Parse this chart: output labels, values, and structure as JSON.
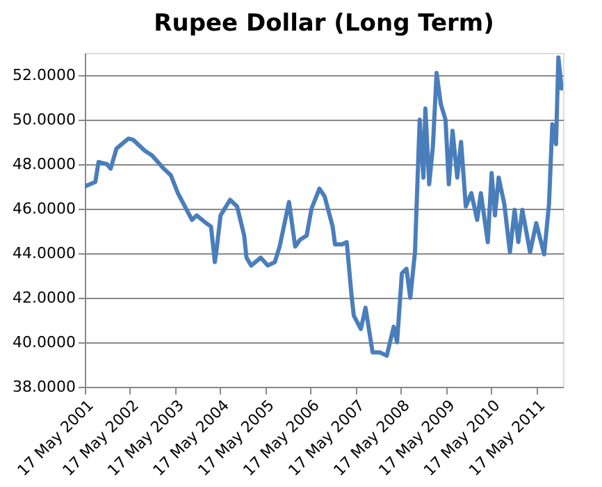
{
  "chart_data": {
    "type": "line",
    "title": "Rupee Dollar (Long Term)",
    "x": [
      "2001-05-17",
      "2001-08-10",
      "2001-09-05",
      "2001-11-12",
      "2001-12-12",
      "2002-01-28",
      "2002-05-04",
      "2002-06-11",
      "2002-09-15",
      "2002-11-11",
      "2003-02-15",
      "2003-04-13",
      "2003-06-09",
      "2003-08-05",
      "2003-10-01",
      "2003-11-08",
      "2004-01-24",
      "2004-03-03",
      "2004-04-03",
      "2004-04-18",
      "2004-05-19",
      "2004-08-04",
      "2004-09-30",
      "2004-11-26",
      "2004-12-15",
      "2005-01-22",
      "2005-04-09",
      "2005-06-05",
      "2005-08-01",
      "2005-09-09",
      "2005-11-24",
      "2006-01-13",
      "2006-02-20",
      "2006-04-16",
      "2006-05-25",
      "2006-07-28",
      "2006-09-08",
      "2006-11-12",
      "2006-12-01",
      "2007-01-27",
      "2007-03-06",
      "2007-04-13",
      "2007-05-02",
      "2007-06-28",
      "2007-08-05",
      "2007-10-01",
      "2007-11-27",
      "2008-01-24",
      "2008-03-20",
      "2008-04-16",
      "2008-05-25",
      "2008-07-01",
      "2008-08-01",
      "2008-09-08",
      "2008-10-16",
      "2008-11-15",
      "2008-12-01",
      "2009-01-01",
      "2009-01-31",
      "2009-03-02",
      "2009-04-05",
      "2009-05-13",
      "2009-06-09",
      "2009-07-09",
      "2009-08-16",
      "2009-09-16",
      "2009-10-24",
      "2009-12-08",
      "2010-01-24",
      "2010-02-23",
      "2010-04-20",
      "2010-05-21",
      "2010-06-17",
      "2010-07-17",
      "2010-09-01",
      "2010-10-16",
      "2010-11-23",
      "2010-12-23",
      "2011-01-24",
      "2011-03-28",
      "2011-05-17",
      "2011-07-20",
      "2011-08-28",
      "2011-09-24",
      "2011-10-24",
      "2011-11-12",
      "2011-12-08"
    ],
    "series": [
      {
        "color": "#4a7ebb",
        "values": [
          47.0,
          47.2,
          48.1,
          48.0,
          47.8,
          48.7,
          49.15,
          49.1,
          48.6,
          48.4,
          47.8,
          47.5,
          46.7,
          46.1,
          45.5,
          45.7,
          45.35,
          45.2,
          43.6,
          44.2,
          45.7,
          46.4,
          46.1,
          44.8,
          43.8,
          43.45,
          43.8,
          43.45,
          43.6,
          44.3,
          46.3,
          44.3,
          44.6,
          44.8,
          46.0,
          46.9,
          46.55,
          45.2,
          44.4,
          44.4,
          44.5,
          42.15,
          41.2,
          40.6,
          41.55,
          39.55,
          39.55,
          39.4,
          40.7,
          40.0,
          43.1,
          43.3,
          42.0,
          44.05,
          50.0,
          47.4,
          50.5,
          47.1,
          48.8,
          52.1,
          50.7,
          50.0,
          47.1,
          49.5,
          47.4,
          49.0,
          46.1,
          46.7,
          45.5,
          46.7,
          44.5,
          47.6,
          45.7,
          47.4,
          46.2,
          44.05,
          45.95,
          44.5,
          45.95,
          44.05,
          45.35,
          43.95,
          46.2,
          49.8,
          48.9,
          52.8,
          51.4
        ]
      }
    ],
    "xlim": [
      "2001-05-17",
      "2011-12-20"
    ],
    "xticks": [
      {
        "value": "2001-05-17",
        "label": "17 May 2001"
      },
      {
        "value": "2002-05-17",
        "label": "17 May 2002"
      },
      {
        "value": "2003-05-17",
        "label": "17 May 2003"
      },
      {
        "value": "2004-05-17",
        "label": "17 May 2004"
      },
      {
        "value": "2005-05-17",
        "label": "17 May 2005"
      },
      {
        "value": "2006-05-17",
        "label": "17 May 2006"
      },
      {
        "value": "2007-05-17",
        "label": "17 May 2007"
      },
      {
        "value": "2008-05-17",
        "label": "17 May 2008"
      },
      {
        "value": "2009-05-17",
        "label": "17 May 2009"
      },
      {
        "value": "2010-05-17",
        "label": "17 May 2010"
      },
      {
        "value": "2011-05-17",
        "label": "17 May 2011"
      }
    ],
    "ylim": [
      38,
      53
    ],
    "yticks": [
      {
        "value": 38,
        "label": "38.0000"
      },
      {
        "value": 40,
        "label": "40.0000"
      },
      {
        "value": 42,
        "label": "42.0000"
      },
      {
        "value": 44,
        "label": "44.0000"
      },
      {
        "value": 46,
        "label": "46.0000"
      },
      {
        "value": 48,
        "label": "48.0000"
      },
      {
        "value": 50,
        "label": "50.0000"
      },
      {
        "value": 52,
        "label": "52.0000"
      }
    ],
    "grid": "y",
    "line_style": "solid"
  }
}
